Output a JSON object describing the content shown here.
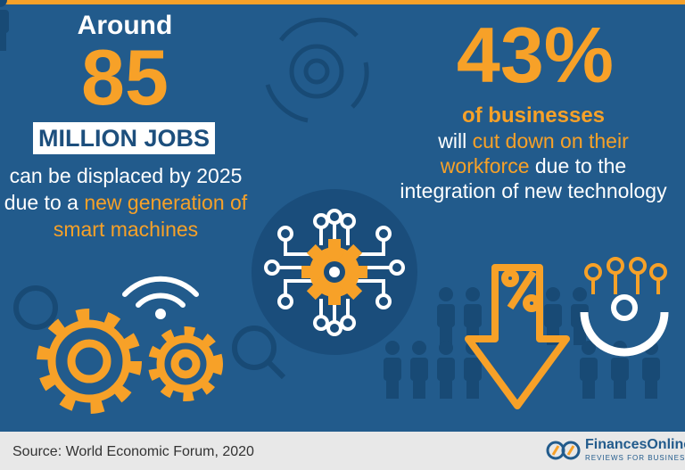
{
  "left": {
    "intro": "Around",
    "number": "85",
    "unit": "MILLION JOBS",
    "text": "can be displaced by 2025 due to a",
    "highlight": "new generation of smart machines"
  },
  "right": {
    "number": "43%",
    "subject": "of businesses",
    "text_1": "will",
    "highlight": "cut down on their workforce",
    "text_2": "due to the integration of new technology"
  },
  "footer": {
    "source": "Source: World Economic Forum, 2020",
    "brand": "FinancesOnline",
    "tagline": "REVIEWS FOR BUSINESS"
  }
}
